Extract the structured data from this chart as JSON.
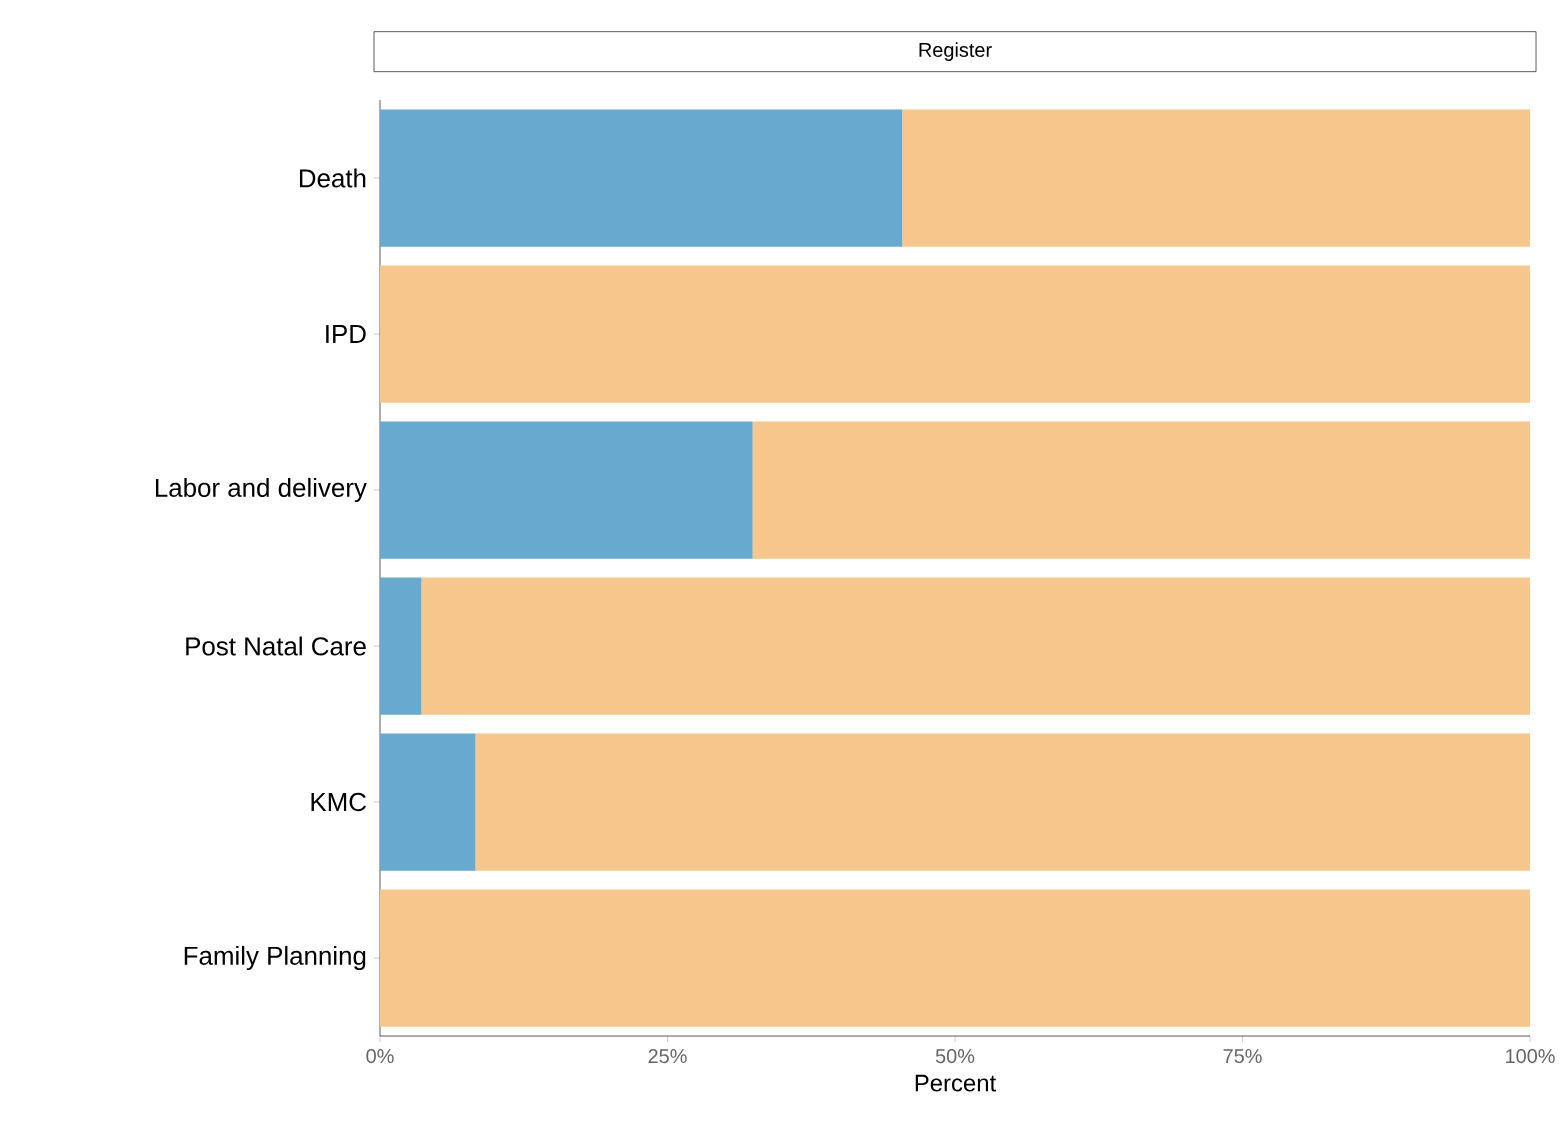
{
  "chart_data": {
    "type": "bar",
    "orientation": "horizontal",
    "stacked": true,
    "title": "Register",
    "xlabel": "Percent",
    "categories": [
      "Death",
      "IPD",
      "Labor and delivery",
      "Post Natal Care",
      "KMC",
      "Family Planning"
    ],
    "series": [
      {
        "color": "#67a9cf",
        "values": [
          45.4,
          0,
          32.4,
          3.6,
          8.3,
          0
        ]
      },
      {
        "color": "#f7c68c",
        "values": [
          54.6,
          100,
          67.6,
          96.4,
          91.7,
          100
        ]
      }
    ],
    "xlim": [
      0,
      100
    ],
    "xticks": [
      {
        "value": 0,
        "label": "0%"
      },
      {
        "value": 25,
        "label": "25%"
      },
      {
        "value": 50,
        "label": "50%"
      },
      {
        "value": 75,
        "label": "75%"
      },
      {
        "value": 100,
        "label": "100%"
      }
    ]
  }
}
